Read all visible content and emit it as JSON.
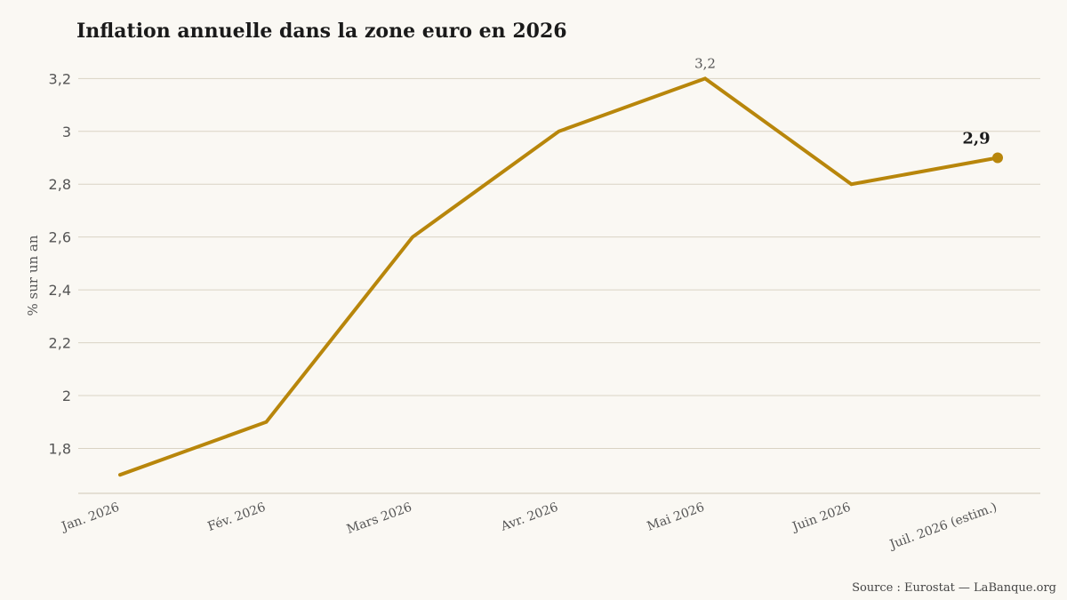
{
  "chart_data": {
    "type": "line",
    "title": "Inflation annuelle dans la zone euro en 2026",
    "ylabel": "% sur un an",
    "xlabel": "",
    "source": "Source : Eurostat — LaBanque.org",
    "categories": [
      "Jan. 2026",
      "Fév. 2026",
      "Mars 2026",
      "Avr. 2026",
      "Mai 2026",
      "Juin 2026",
      "Juil. 2026 (estim.)"
    ],
    "series": [
      {
        "values": [
          1.7,
          1.9,
          2.6,
          3.0,
          3.2,
          2.8,
          2.9
        ]
      }
    ],
    "ylim": [
      1.63,
      3.26
    ],
    "yticks": [
      1.8,
      2.0,
      2.2,
      2.4,
      2.6,
      2.8,
      3.0,
      3.2
    ],
    "ytick_labels": [
      "1,8",
      "2",
      "2,2",
      "2,4",
      "2,6",
      "2,8",
      "3",
      "3,2"
    ],
    "annotations": [
      {
        "category": "Mai 2026",
        "value": 3.2,
        "text": "3,2",
        "style": "peak"
      },
      {
        "category": "Juil. 2026 (estim.)",
        "value": 2.9,
        "text": "2,9",
        "style": "last"
      }
    ],
    "grid": true,
    "line_color": "#b8860b"
  }
}
